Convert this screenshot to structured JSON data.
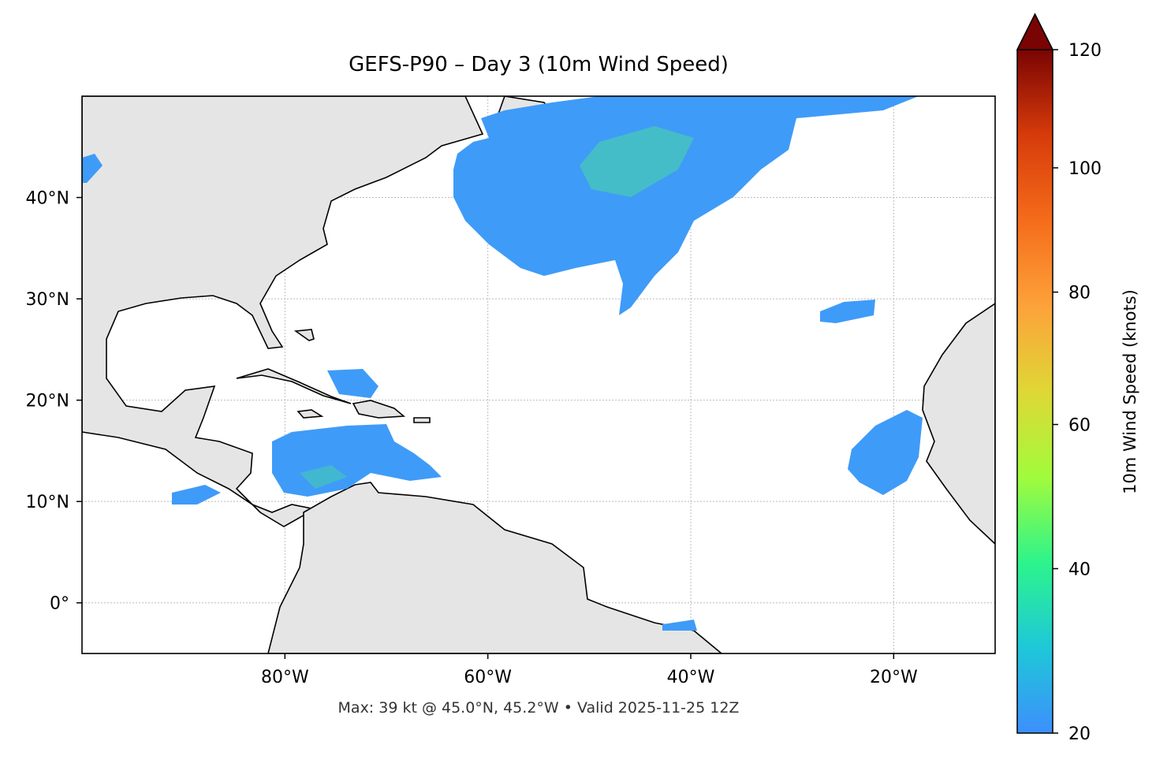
{
  "map": {
    "title": "GEFS-P90 – Day 3 (10m Wind Speed)",
    "footer": "Max: 39 kt @ 45.0°N, 45.2°W • Valid 2025-11-25 12Z",
    "xlim": [
      -100,
      -10
    ],
    "ylim": [
      -5,
      50
    ],
    "xticks": [
      {
        "value": -80,
        "label": "80°W"
      },
      {
        "value": -60,
        "label": "60°W"
      },
      {
        "value": -40,
        "label": "40°W"
      },
      {
        "value": -20,
        "label": "20°W"
      }
    ],
    "yticks": [
      {
        "value": 0,
        "label": "0°"
      },
      {
        "value": 10,
        "label": "10°N"
      },
      {
        "value": 20,
        "label": "20°N"
      },
      {
        "value": 30,
        "label": "30°N"
      },
      {
        "value": 40,
        "label": "40°N"
      }
    ],
    "grid": true,
    "colorbar": {
      "label": "10m Wind Speed (knots)",
      "lim": [
        20,
        120
      ],
      "ticks": [
        20,
        40,
        60,
        80,
        100,
        120
      ],
      "scale": "power",
      "exponent": 0.75,
      "extend": "max",
      "colors": [
        "#3d8ffd",
        "#1ec8d8",
        "#2df48b",
        "#a2fb3c",
        "#dfd735",
        "#fda23a",
        "#f56c1b",
        "#d63b0a",
        "#7a0403"
      ]
    }
  }
}
